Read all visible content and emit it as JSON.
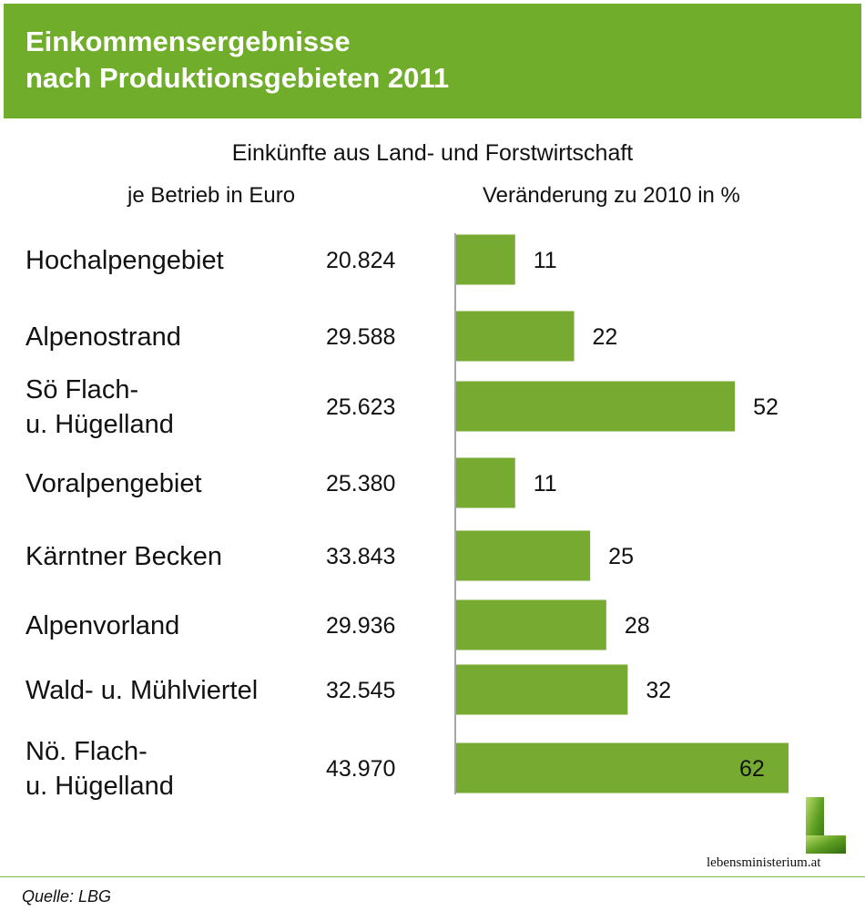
{
  "header": {
    "title_line1": "Einkommensergebnisse",
    "title_line2": "nach Produktionsgebieten 2011"
  },
  "subtitle": "Einkünfte aus Land- und Forstwirtschaft",
  "column_headers": {
    "left": "je Betrieb in Euro",
    "right": "Veränderung zu 2010 in %"
  },
  "colors": {
    "header_bg": "#6fad2a",
    "bar": "#76aa30",
    "axis": "#8a8a8a",
    "footer_line": "#7bbf3a"
  },
  "chart_data": {
    "type": "bar",
    "orientation": "horizontal",
    "categories": [
      [
        "Hochalpengebiet"
      ],
      [
        "Alpenostrand"
      ],
      [
        "Sö Flach-",
        "u. Hügelland"
      ],
      [
        "Voralpengebiet"
      ],
      [
        "Kärntner Becken"
      ],
      [
        "Alpenvorland"
      ],
      [
        "Wald- u. Mühlviertel"
      ],
      [
        "Nö. Flach-",
        "u. Hügelland"
      ]
    ],
    "euro_per_farm": [
      "20.824",
      "29.588",
      "25.623",
      "25.380",
      "33.843",
      "29.936",
      "32.545",
      "43.970"
    ],
    "values": [
      11,
      22,
      52,
      11,
      25,
      28,
      32,
      62
    ],
    "xlim": [
      0,
      62
    ],
    "label_inside_last": true
  },
  "source": "Quelle: LBG",
  "logo": {
    "icon": "lebensministerium-logo-icon",
    "text": "lebensministerium.at"
  }
}
